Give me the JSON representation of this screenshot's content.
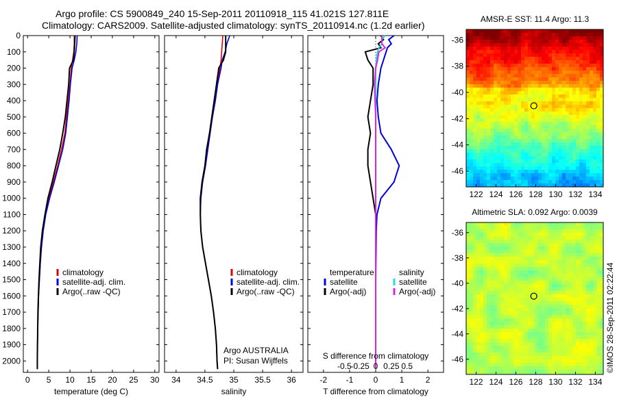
{
  "header": {
    "line1": "Argo profile: CS 5900849_240 15-Sep-2011 20110918_115 41.021S 127.811E",
    "line2": "Climatology: CARS2009. Satellite-adjusted climatology: synTS_20110914.nc (1.2d earlier)"
  },
  "credit": "©IMOS 28-Sep-2011 02:22:44",
  "colors": {
    "climatology": "#e00000",
    "satellite": "#0000dd",
    "argo": "#000000",
    "salinity_satellite": "#22dddd",
    "salinity_argo": "#dd22dd"
  },
  "chart_data": [
    {
      "type": "line",
      "panel": "temperature",
      "xlabel": "temperature (deg C)",
      "xlim": [
        -1,
        31
      ],
      "ylim": [
        2070,
        0
      ],
      "xticks": [
        0,
        5,
        10,
        15,
        20,
        25,
        30
      ],
      "yticks": [
        0,
        100,
        200,
        300,
        400,
        500,
        600,
        700,
        800,
        900,
        1000,
        1100,
        1200,
        1300,
        1400,
        1500,
        1600,
        1700,
        1800,
        1900,
        2000
      ],
      "legend": [
        "climatology",
        "satellite-adj. clim.",
        "Argo(..raw -QC)"
      ],
      "depth": [
        0,
        50,
        100,
        150,
        200,
        300,
        400,
        500,
        600,
        700,
        800,
        900,
        1000,
        1100,
        1200,
        1300,
        1400,
        1500,
        1600,
        1700,
        1800,
        1900,
        2000,
        2050
      ],
      "series": [
        {
          "name": "climatology",
          "values": [
            11.0,
            11.0,
            10.9,
            10.6,
            10.3,
            10.0,
            9.6,
            9.2,
            8.8,
            8.0,
            7.1,
            6.1,
            5.0,
            4.2,
            3.6,
            3.2,
            3.0,
            2.8,
            2.6,
            2.5,
            2.4,
            2.35,
            2.3,
            2.3
          ]
        },
        {
          "name": "satellite-adj. clim.",
          "values": [
            11.7,
            11.6,
            11.4,
            11.0,
            10.5,
            10.1,
            9.8,
            9.4,
            9.0,
            8.3,
            7.3,
            6.3,
            5.2,
            4.3,
            3.7,
            3.3,
            3.0,
            2.8,
            2.6,
            2.5,
            2.4,
            2.35,
            2.3,
            2.3
          ]
        },
        {
          "name": "Argo(..raw -QC)",
          "values": [
            11.2,
            11.1,
            11.0,
            10.8,
            9.9,
            9.7,
            9.3,
            8.9,
            8.3,
            7.6,
            6.7,
            5.8,
            4.8,
            4.1,
            3.5,
            3.1,
            2.9,
            2.7,
            2.55,
            2.45,
            2.4,
            2.35,
            2.3,
            2.3
          ]
        }
      ]
    },
    {
      "type": "line",
      "panel": "salinity",
      "xlabel": "salinity",
      "xlim": [
        33.8,
        36.2
      ],
      "ylim": [
        2070,
        0
      ],
      "xticks": [
        34,
        34.5,
        35,
        35.5,
        36
      ],
      "legend": [
        "climatology",
        "satellite-adj. clim.",
        "Argo(..raw -QC)"
      ],
      "annotation": [
        "Argo AUSTRALIA",
        "PI: Susan Wijffels"
      ],
      "depth": [
        0,
        50,
        100,
        150,
        200,
        300,
        400,
        500,
        600,
        700,
        800,
        900,
        1000,
        1100,
        1200,
        1300,
        1400,
        1500,
        1600,
        1700,
        1800,
        1900,
        2000,
        2050
      ],
      "series": [
        {
          "name": "climatology",
          "values": [
            34.81,
            34.8,
            34.79,
            34.78,
            34.76,
            34.72,
            34.68,
            34.63,
            34.59,
            34.55,
            34.51,
            34.46,
            34.43,
            34.42,
            34.43,
            34.46,
            34.51,
            34.56,
            34.61,
            34.65,
            34.68,
            34.7,
            34.71,
            34.72
          ]
        },
        {
          "name": "satellite-adj. clim.",
          "values": [
            34.93,
            34.88,
            34.85,
            34.8,
            34.78,
            34.72,
            34.68,
            34.63,
            34.59,
            34.55,
            34.51,
            34.46,
            34.43,
            34.42,
            34.43,
            34.46,
            34.51,
            34.56,
            34.61,
            34.65,
            34.68,
            34.7,
            34.71,
            34.72
          ]
        },
        {
          "name": "Argo(..raw -QC)",
          "values": [
            34.86,
            34.86,
            34.86,
            34.82,
            34.74,
            34.7,
            34.66,
            34.62,
            34.58,
            34.53,
            34.5,
            34.45,
            34.42,
            34.42,
            34.43,
            34.46,
            34.51,
            34.56,
            34.61,
            34.65,
            34.68,
            34.7,
            34.71,
            34.72
          ]
        }
      ]
    },
    {
      "type": "line",
      "panel": "difference",
      "xlabel": "T difference from climatology",
      "x2label": "S difference from climatology",
      "xlim": [
        -2.6,
        2.6
      ],
      "ylim": [
        2070,
        0
      ],
      "xticks": [
        -2,
        -1,
        0,
        1,
        2
      ],
      "xticks2": [
        "-0.5",
        "-0.25",
        "0",
        "0.25",
        "0.5"
      ],
      "legend_headers": [
        "temperature",
        "salinity"
      ],
      "legend_temperature": [
        "satellite",
        "Argo(-adj)"
      ],
      "legend_salinity": [
        "satellite",
        "Argo(-adj)"
      ],
      "depth": [
        0,
        25,
        50,
        75,
        100,
        150,
        200,
        250,
        300,
        400,
        500,
        600,
        700,
        800,
        900,
        1000,
        1100,
        1200,
        1500,
        2000,
        2050
      ],
      "series": [
        {
          "name": "T satellite",
          "values": [
            0.7,
            0.5,
            0.6,
            0.45,
            0.4,
            0.3,
            0.2,
            0.15,
            0.1,
            0.05,
            0.1,
            0.2,
            0.6,
            0.9,
            0.7,
            0.2,
            0.05,
            0.02,
            0.0,
            0.0,
            0.0
          ]
        },
        {
          "name": "T Argo(-adj)",
          "values": [
            0.2,
            0.3,
            0.1,
            0.2,
            -0.4,
            -0.3,
            -0.1,
            -0.1,
            -0.1,
            -0.2,
            -0.3,
            -0.2,
            -0.3,
            -0.3,
            -0.2,
            -0.1,
            0.0,
            0.0,
            0.0,
            0.0,
            0.0
          ]
        },
        {
          "name": "S satellite",
          "values": [
            0.15,
            0.1,
            0.1,
            0.05,
            0.03,
            0.01,
            0.0,
            0.0,
            0.0,
            0.0,
            0.0,
            0.0,
            0.0,
            0.0,
            0.0,
            0.0,
            0.0,
            0.0,
            0.0,
            0.0,
            0.0
          ]
        },
        {
          "name": "S Argo(-adj)",
          "values": [
            0.1,
            0.1,
            0.1,
            0.15,
            0.05,
            0.03,
            0.0,
            -0.01,
            -0.02,
            -0.01,
            0.0,
            0.0,
            0.0,
            0.0,
            0.0,
            0.0,
            0.0,
            0.0,
            0.0,
            0.0,
            0.0
          ]
        }
      ]
    },
    {
      "type": "heatmap",
      "panel": "sst-map",
      "title": "AMSR-E SST: 11.4  Argo: 11.3",
      "xticks": [
        122,
        124,
        126,
        128,
        130,
        132,
        134
      ],
      "yticks": [
        -36,
        -38,
        -40,
        -42,
        -44,
        -46
      ],
      "xlim": [
        121,
        134.8
      ],
      "ylim": [
        -47.2,
        -35.2
      ],
      "marker": {
        "lon": 127.811,
        "lat": -41.021
      }
    },
    {
      "type": "heatmap",
      "panel": "sla-map",
      "title": "Altimetric SLA: 0.092  Argo: 0.0039",
      "xticks": [
        122,
        124,
        126,
        128,
        130,
        132,
        134
      ],
      "yticks": [
        -36,
        -38,
        -40,
        -42,
        -44,
        -46
      ],
      "xlim": [
        121,
        134.8
      ],
      "ylim": [
        -47.2,
        -35.2
      ],
      "marker": {
        "lon": 127.811,
        "lat": -41.021
      }
    }
  ]
}
